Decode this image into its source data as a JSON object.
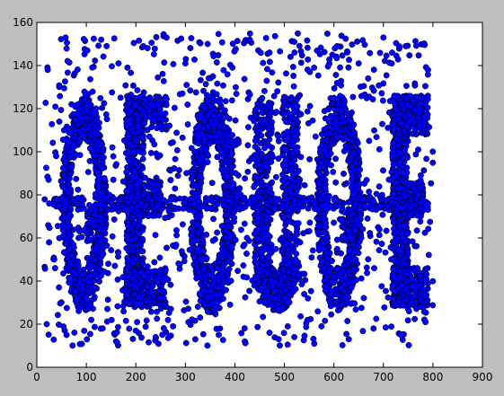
{
  "figure": {
    "background": "#bfbfbf",
    "axes_background": "#ffffff"
  },
  "chart_data": {
    "type": "scatter",
    "title": "",
    "xlabel": "",
    "ylabel": "",
    "xlim": [
      0,
      900
    ],
    "ylim": [
      0,
      160
    ],
    "xticks": [
      0,
      100,
      200,
      300,
      400,
      500,
      600,
      700,
      800,
      900
    ],
    "yticks": [
      0,
      20,
      40,
      60,
      80,
      100,
      120,
      140,
      160
    ],
    "grid": false,
    "legend": "none",
    "marker": {
      "shape": "circle",
      "face_color": "#0000ff",
      "edge_color": "#000000"
    },
    "point_count_approx": 9000,
    "series": [
      {
        "points_sample": [
          [
            22,
            138
          ],
          [
            35,
            50
          ],
          [
            58,
            153
          ],
          [
            102,
            147
          ],
          [
            130,
            152
          ],
          [
            165,
            141
          ],
          [
            215,
            149
          ],
          [
            262,
            153
          ],
          [
            300,
            141
          ],
          [
            345,
            150
          ],
          [
            395,
            139
          ],
          [
            430,
            152
          ],
          [
            470,
            146
          ],
          [
            520,
            151
          ],
          [
            560,
            139
          ],
          [
            602,
            148
          ],
          [
            650,
            141
          ],
          [
            700,
            153
          ],
          [
            745,
            149
          ],
          [
            790,
            138
          ],
          [
            20,
            20
          ],
          [
            60,
            15
          ],
          [
            110,
            22
          ],
          [
            160,
            12
          ],
          [
            200,
            17
          ],
          [
            240,
            14
          ],
          [
            275,
            19
          ],
          [
            320,
            13
          ],
          [
            370,
            18
          ],
          [
            420,
            12
          ],
          [
            470,
            16
          ],
          [
            520,
            14
          ],
          [
            575,
            19
          ],
          [
            630,
            13
          ],
          [
            680,
            18
          ],
          [
            735,
            15
          ],
          [
            785,
            21
          ],
          [
            55,
            110
          ],
          [
            60,
            60
          ],
          [
            70,
            122
          ],
          [
            95,
            124
          ],
          [
            120,
            120
          ],
          [
            78,
            35
          ],
          [
            100,
            32
          ],
          [
            125,
            40
          ],
          [
            130,
            70
          ],
          [
            195,
            100
          ],
          [
            200,
            50
          ],
          [
            215,
            80
          ],
          [
            250,
            80
          ],
          [
            255,
            115
          ],
          [
            260,
            45
          ],
          [
            320,
            100
          ],
          [
            330,
            50
          ],
          [
            355,
            125
          ],
          [
            365,
            30
          ],
          [
            390,
            60
          ],
          [
            395,
            105
          ],
          [
            450,
            110
          ],
          [
            460,
            60
          ],
          [
            480,
            35
          ],
          [
            505,
            30
          ],
          [
            520,
            60
          ],
          [
            525,
            110
          ],
          [
            575,
            95
          ],
          [
            580,
            55
          ],
          [
            600,
            125
          ],
          [
            620,
            32
          ],
          [
            650,
            100
          ],
          [
            655,
            60
          ],
          [
            730,
            115
          ],
          [
            740,
            60
          ],
          [
            760,
            124
          ],
          [
            770,
            80
          ],
          [
            775,
            42
          ],
          [
            25,
            76
          ],
          [
            150,
            76
          ],
          [
            300,
            76
          ],
          [
            430,
            77
          ],
          [
            560,
            76
          ],
          [
            680,
            77
          ],
          [
            790,
            76
          ]
        ]
      }
    ]
  }
}
